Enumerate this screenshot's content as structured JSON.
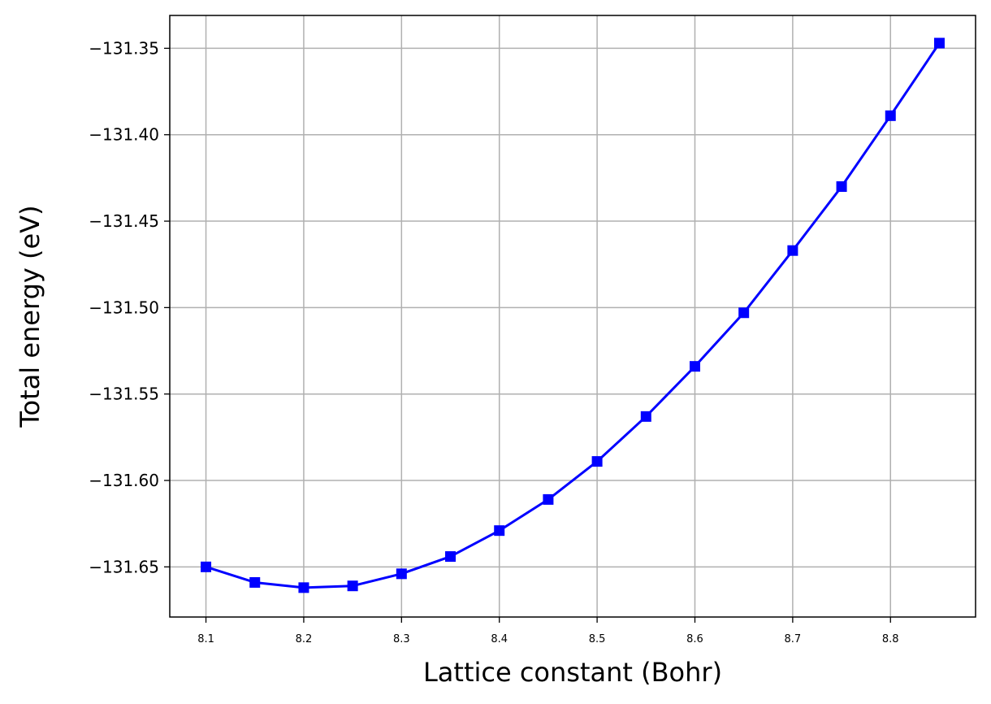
{
  "chart_data": {
    "type": "line",
    "title": "",
    "xlabel": "Lattice constant (Bohr)",
    "ylabel": "Total energy (eV)",
    "xlim": [
      8.063,
      8.887
    ],
    "ylim": [
      -131.679,
      -131.331
    ],
    "x_ticks": [
      "8.1",
      "8.2",
      "8.3",
      "8.4",
      "8.5",
      "8.6",
      "8.7",
      "8.8"
    ],
    "y_ticks": [
      "−131.35",
      "−131.40",
      "−131.45",
      "−131.50",
      "−131.55",
      "−131.60",
      "−131.65"
    ],
    "grid": true,
    "legend": "none",
    "series": [
      {
        "color": "#0000ff",
        "marker": "square",
        "x": [
          8.1,
          8.15,
          8.2,
          8.25,
          8.3,
          8.35,
          8.4,
          8.45,
          8.5,
          8.55,
          8.6,
          8.65,
          8.7,
          8.75,
          8.8,
          8.85
        ],
        "y": [
          -131.65,
          -131.659,
          -131.662,
          -131.661,
          -131.654,
          -131.644,
          -131.629,
          -131.611,
          -131.589,
          -131.563,
          -131.534,
          -131.503,
          -131.467,
          -131.43,
          -131.389,
          -131.347
        ]
      }
    ]
  }
}
